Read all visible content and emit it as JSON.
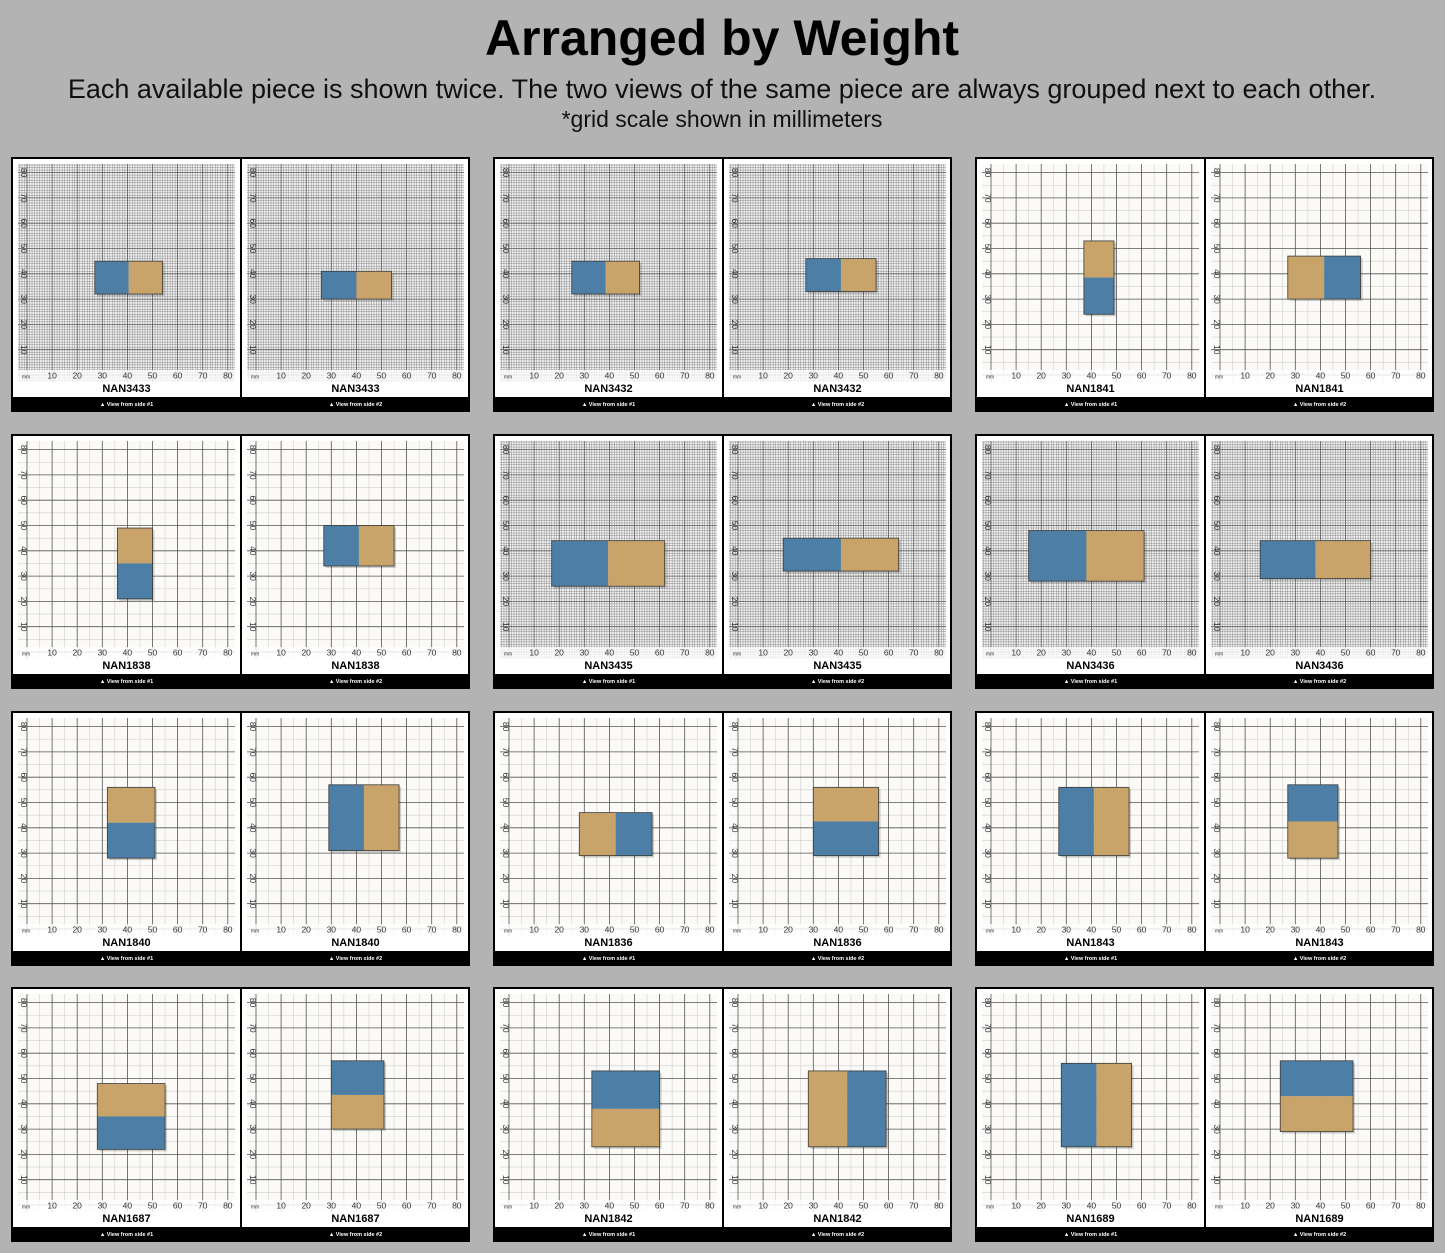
{
  "header": {
    "title": "Arranged by Weight",
    "subtitle": "Each available piece is shown twice. The two views of the same piece are always grouped next to each other.",
    "note": "*grid scale shown in millimeters"
  },
  "grid": {
    "unit": "mm",
    "x_labels": [
      "10",
      "20",
      "30",
      "40",
      "50",
      "60",
      "70",
      "80"
    ],
    "y_labels": [
      "10",
      "20",
      "30",
      "40",
      "50",
      "60",
      "70",
      "80"
    ]
  },
  "views": [
    "▲ View from side #1",
    "▲ View from side #2"
  ],
  "pieces": [
    "NAN3433",
    "NAN3432",
    "NAN1841",
    "NAN1838",
    "NAN3435",
    "NAN3436",
    "NAN1840",
    "NAN1836",
    "NAN1843",
    "NAN1687",
    "NAN1842",
    "NAN1689"
  ]
}
